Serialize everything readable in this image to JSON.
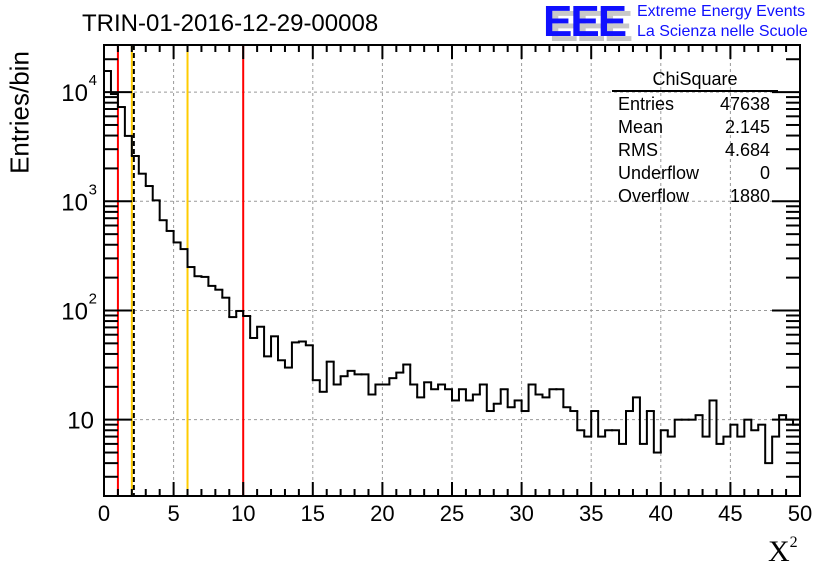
{
  "chart_data": {
    "type": "bar",
    "histogram": true,
    "title": "TRIN-01-2016-12-29-00008",
    "xlabel": {
      "base": "X",
      "sup": "2"
    },
    "ylabel": "Entries/bin",
    "xlim": [
      0,
      50
    ],
    "ylim": [
      2,
      27000
    ],
    "yscale": "log",
    "grid": true,
    "bin_width": 0.5,
    "x_ticks": [
      "0",
      "5",
      "10",
      "15",
      "20",
      "25",
      "30",
      "35",
      "40",
      "45",
      "50"
    ],
    "y_ticks": [
      {
        "value": 10,
        "base": "10",
        "exp": ""
      },
      {
        "value": 100,
        "base": "10",
        "exp": "2"
      },
      {
        "value": 1000,
        "base": "10",
        "exp": "3"
      },
      {
        "value": 10000,
        "base": "10",
        "exp": "4"
      }
    ],
    "values": [
      15600,
      9600,
      7300,
      3970,
      2600,
      1790,
      1380,
      1020,
      671,
      535,
      420,
      365,
      250,
      206,
      203,
      168,
      155,
      131,
      87,
      99,
      89,
      56,
      71,
      38,
      58,
      35,
      30,
      51,
      52,
      48,
      23,
      18,
      34,
      21,
      25,
      28,
      26,
      26,
      17,
      21,
      21,
      24,
      27,
      32,
      21,
      16,
      22,
      19,
      21,
      19,
      15,
      19,
      15,
      17,
      21,
      12,
      14,
      19,
      13,
      15,
      12,
      21,
      17,
      16,
      19,
      19,
      13,
      12,
      8,
      7,
      12,
      7,
      8,
      8,
      6,
      12,
      16,
      6,
      12,
      5,
      8,
      7,
      10,
      10,
      10,
      11,
      7,
      15,
      6,
      7,
      9,
      7,
      10,
      8,
      9,
      4,
      7,
      11,
      10,
      9
    ],
    "markers": [
      {
        "x": 1,
        "color": "#ff0000",
        "dashed": false
      },
      {
        "x": 2,
        "color": "#ffcc00",
        "dashed": false
      },
      {
        "x": 6,
        "color": "#ffcc00",
        "dashed": false
      },
      {
        "x": 10,
        "color": "#ff0000",
        "dashed": false
      },
      {
        "x": 2.145,
        "color": "#000000",
        "dashed": true
      }
    ],
    "stats": {
      "name": "ChiSquare",
      "rows": [
        {
          "label": "Entries",
          "value": "47638"
        },
        {
          "label": "Mean",
          "value": "2.145"
        },
        {
          "label": "RMS",
          "value": "4.684"
        },
        {
          "label": "Underflow",
          "value": "0"
        },
        {
          "label": "Overflow",
          "value": "1880"
        }
      ]
    },
    "legend_position": "top-right"
  },
  "logo": {
    "letters": "EEE",
    "line1": "Extreme Energy Events",
    "line2": "La Scienza nelle Scuole",
    "color": "#1010ff"
  }
}
